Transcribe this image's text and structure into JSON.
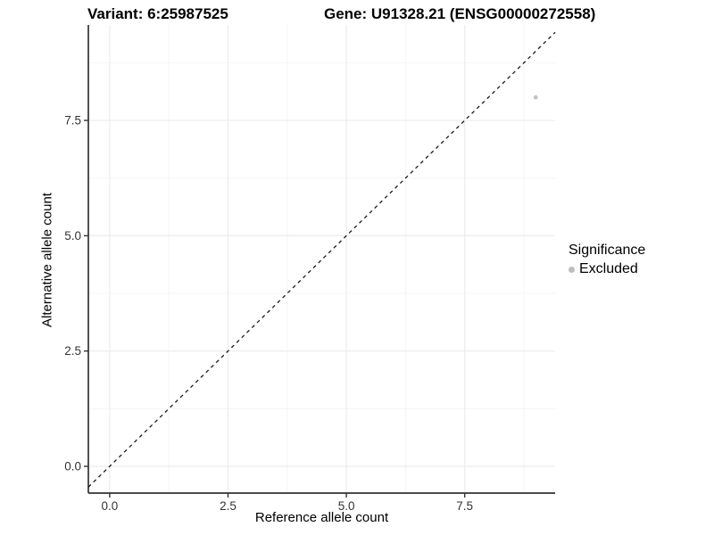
{
  "chart_data": {
    "type": "scatter",
    "title_left": "Variant: 6:25987525",
    "title_right": "Gene: U91328.21 (ENSG00000272558)",
    "xlabel": "Reference allele count",
    "ylabel": "Alternative allele count",
    "xlim": [
      -0.45,
      9.41
    ],
    "ylim": [
      -0.58,
      9.57
    ],
    "x_ticks": [
      0,
      2.5,
      5,
      7.5
    ],
    "y_ticks": [
      0,
      2.5,
      5,
      7.5
    ],
    "x_tick_labels": [
      "0.0",
      "2.5",
      "5.0",
      "7.5"
    ],
    "y_tick_labels": [
      "0.0",
      "2.5",
      "5.0",
      "7.5"
    ],
    "x_minor_ticks": [
      1.25,
      3.75,
      6.25,
      8.75
    ],
    "y_minor_ticks": [
      1.25,
      3.75,
      6.25,
      8.75
    ],
    "grid": true,
    "legend_position": "right",
    "points": [
      {
        "x": 9,
        "y": 8,
        "series": "Excluded"
      }
    ],
    "reference_line": {
      "slope": 1,
      "intercept": 0,
      "style": "dashed"
    },
    "legend": {
      "title": "Significance",
      "entries": [
        {
          "label": "Excluded",
          "color": "#bdbdbd"
        }
      ]
    },
    "colors": {
      "point": "#c3c3c3",
      "grid_major": "#ececec",
      "grid_minor": "#f5f5f5",
      "axis": "#333333",
      "tick_label": "#333333",
      "dashed_line": "#1a1a1a"
    }
  }
}
